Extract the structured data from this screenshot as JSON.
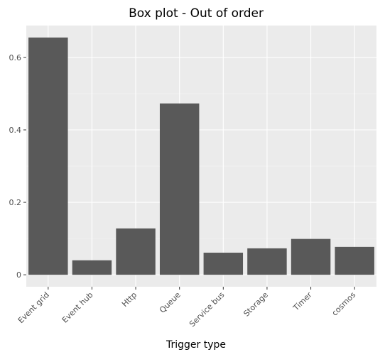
{
  "chart_data": {
    "type": "bar",
    "title": "Box plot - Out of order",
    "xlabel": "Trigger type",
    "ylabel": "",
    "categories": [
      "Event grid",
      "Event hub",
      "Http",
      "Queue",
      "Service bus",
      "Storage",
      "Timer",
      "cosmos"
    ],
    "values": [
      0.655,
      0.04,
      0.128,
      0.473,
      0.061,
      0.073,
      0.099,
      0.077
    ],
    "ylim": [
      -0.033,
      0.688
    ],
    "yticks": [
      0,
      0.2,
      0.4,
      0.6
    ],
    "ytick_labels": [
      "0",
      "0.2",
      "0.4",
      "0.6"
    ],
    "grid": true,
    "colors": {
      "panel": "#ebebeb",
      "grid_major": "#ffffff",
      "bar": "#595959",
      "tick": "#333333"
    }
  }
}
